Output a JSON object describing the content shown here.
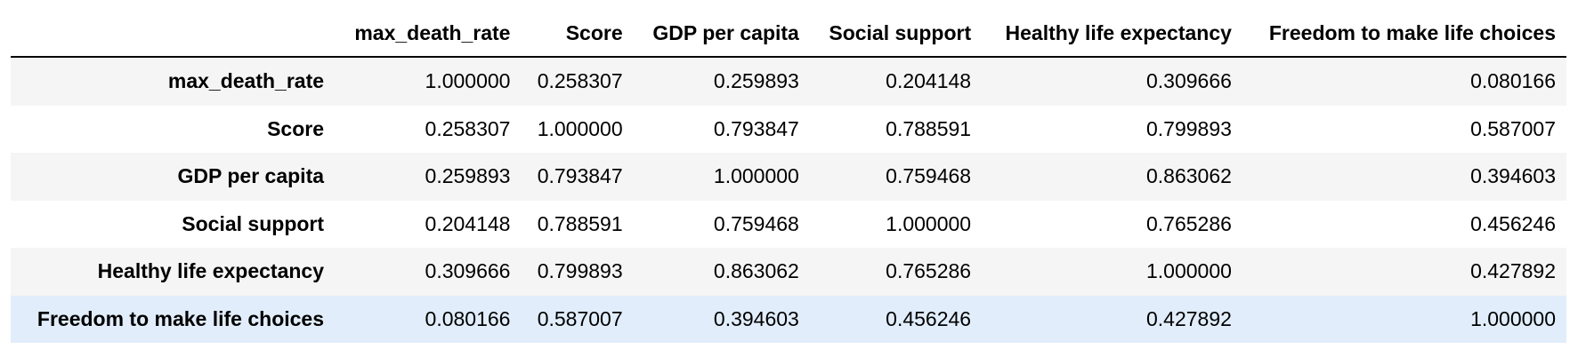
{
  "table": {
    "columns": [
      "",
      "max_death_rate",
      "Score",
      "GDP per capita",
      "Social support",
      "Healthy life expectancy",
      "Freedom to make life choices"
    ],
    "rows": [
      {
        "label": "max_death_rate",
        "values": [
          "1.000000",
          "0.258307",
          "0.259893",
          "0.204148",
          "0.309666",
          "0.080166"
        ]
      },
      {
        "label": "Score",
        "values": [
          "0.258307",
          "1.000000",
          "0.793847",
          "0.788591",
          "0.799893",
          "0.587007"
        ]
      },
      {
        "label": "GDP per capita",
        "values": [
          "0.259893",
          "0.793847",
          "1.000000",
          "0.759468",
          "0.863062",
          "0.394603"
        ]
      },
      {
        "label": "Social support",
        "values": [
          "0.204148",
          "0.788591",
          "0.759468",
          "1.000000",
          "0.765286",
          "0.456246"
        ]
      },
      {
        "label": "Healthy life expectancy",
        "values": [
          "0.309666",
          "0.799893",
          "0.863062",
          "0.765286",
          "1.000000",
          "0.427892"
        ]
      },
      {
        "label": "Freedom to make life choices",
        "values": [
          "0.080166",
          "0.587007",
          "0.394603",
          "0.456246",
          "0.427892",
          "1.000000"
        ]
      }
    ],
    "hovered_row_index": 5,
    "colors": {
      "striped_row": "#f5f5f5",
      "hovered_row": "#e1edfa",
      "header_rule": "#000000"
    }
  }
}
